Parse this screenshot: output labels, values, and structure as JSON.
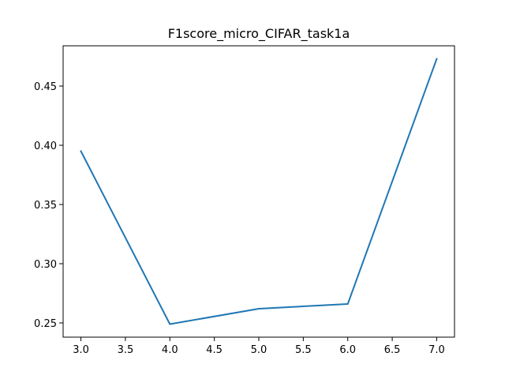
{
  "chart_data": {
    "type": "line",
    "title": "F1score_micro_CIFAR_task1a",
    "xlabel": "",
    "ylabel": "",
    "xlim": [
      2.8,
      7.2
    ],
    "ylim": [
      0.238,
      0.484
    ],
    "x_ticks": [
      3.0,
      3.5,
      4.0,
      4.5,
      5.0,
      5.5,
      6.0,
      6.5,
      7.0
    ],
    "x_tick_labels": [
      "3.0",
      "3.5",
      "4.0",
      "4.5",
      "5.0",
      "5.5",
      "6.0",
      "6.5",
      "7.0"
    ],
    "y_ticks": [
      0.25,
      0.3,
      0.35,
      0.4,
      0.45
    ],
    "y_tick_labels": [
      "0.25",
      "0.30",
      "0.35",
      "0.40",
      "0.45"
    ],
    "grid": false,
    "legend": "none",
    "series": [
      {
        "color": "#1f77b4",
        "x": [
          3,
          4,
          5,
          6,
          7
        ],
        "y": [
          0.395,
          0.249,
          0.262,
          0.266,
          0.473
        ]
      }
    ]
  }
}
